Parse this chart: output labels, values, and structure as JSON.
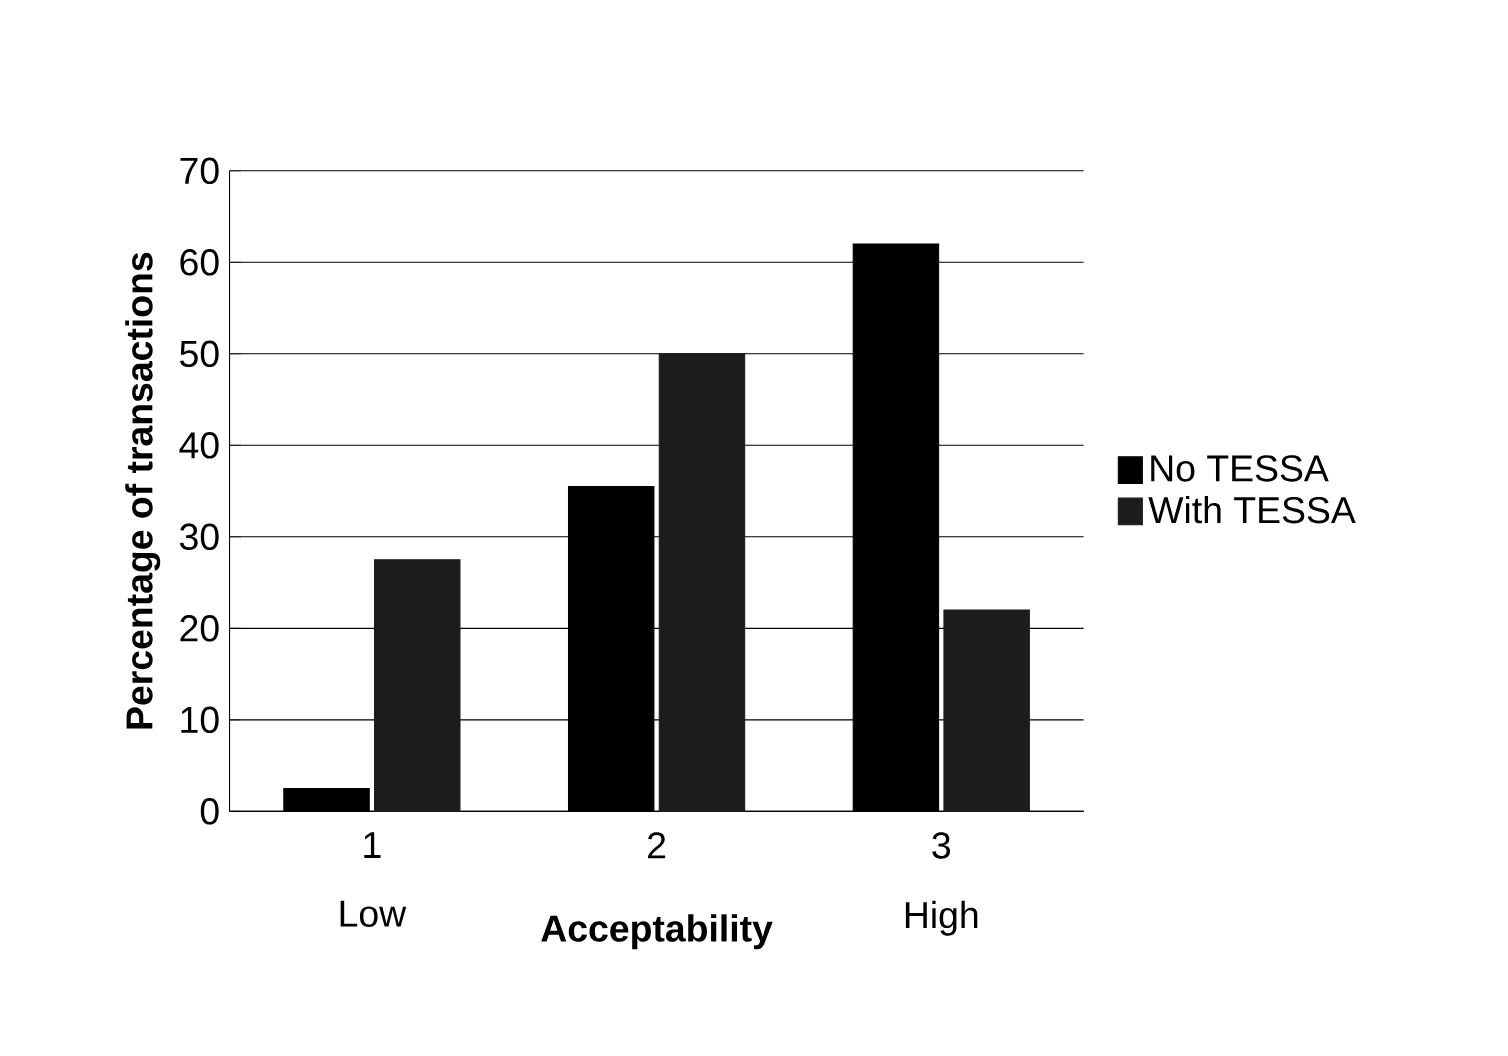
{
  "chart_data": {
    "type": "bar",
    "xlabel": "Acceptability",
    "ylabel": "Percentage of transactions",
    "categories": [
      "1",
      "2",
      "3"
    ],
    "series": [
      {
        "name": "No TESSA",
        "color": "#000000",
        "values": [
          2.5,
          35.5,
          62
        ]
      },
      {
        "name": "With TESSA",
        "color": "#1c1c1c",
        "values": [
          27.5,
          50,
          22
        ]
      }
    ],
    "annotations": [
      "Low",
      "High"
    ],
    "ylim": [
      0,
      70
    ],
    "yticks": [
      0,
      10,
      20,
      30,
      40,
      50,
      60,
      70
    ],
    "grid": "y",
    "legend": "right"
  }
}
